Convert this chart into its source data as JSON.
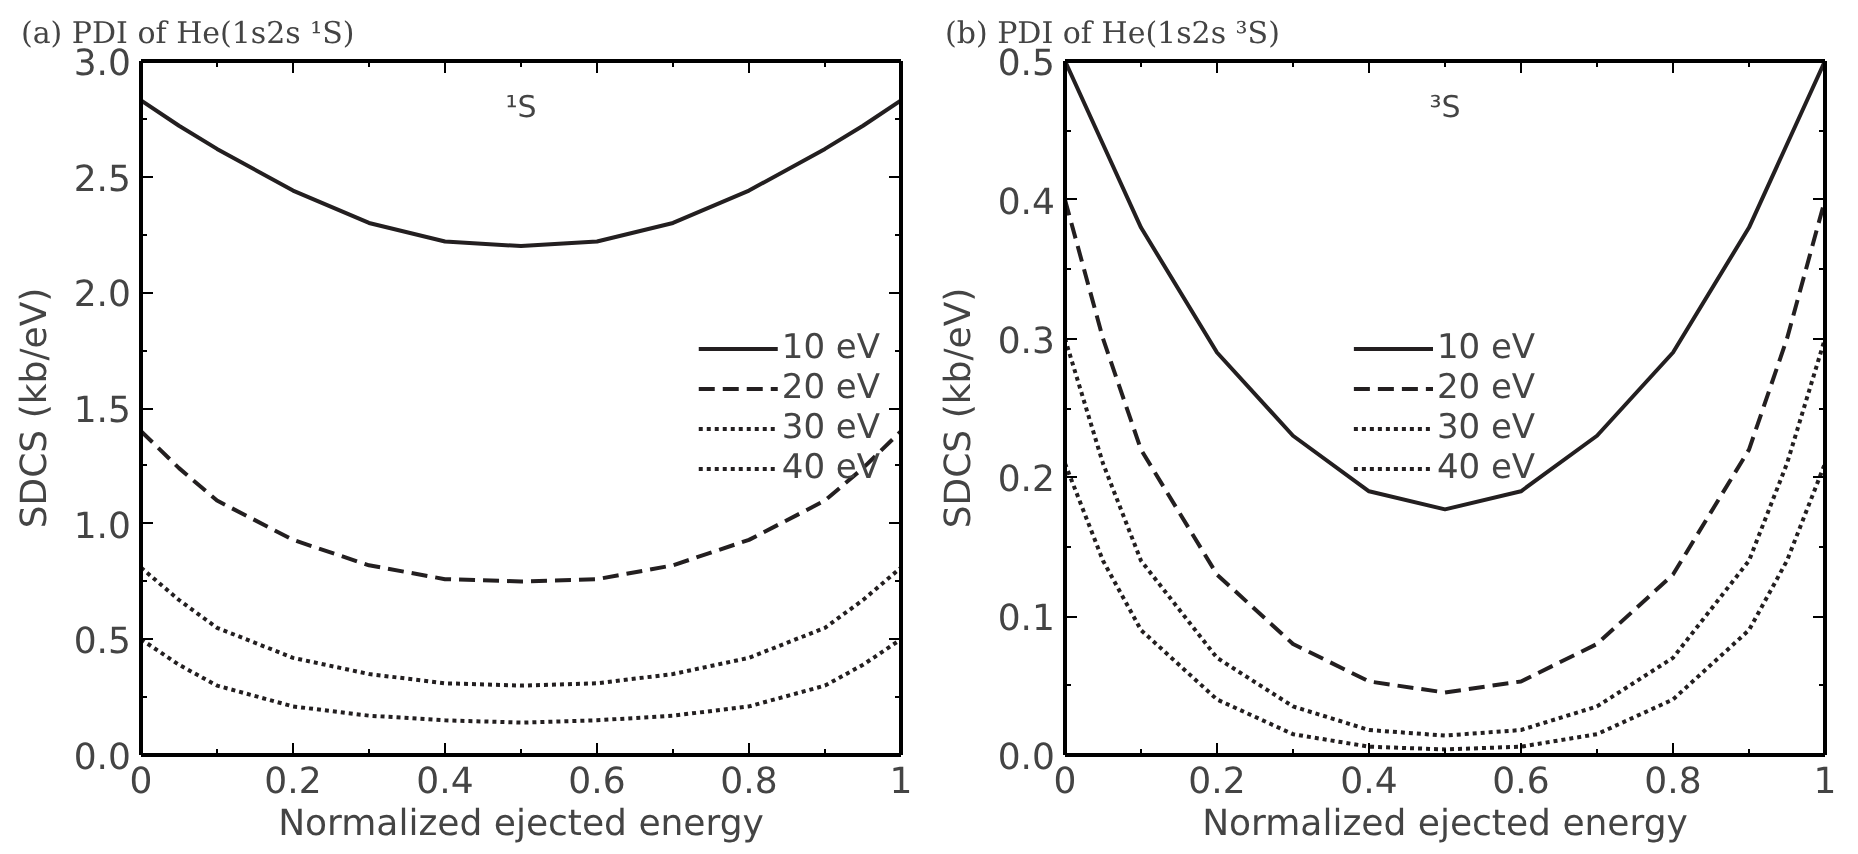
{
  "chart_data": [
    {
      "type": "line",
      "title": "(a) PDI of He(1s2s ¹S)",
      "xlabel": "Normalized ejected energy",
      "ylabel": "SDCS (kb/eV)",
      "annotations": [
        "¹S"
      ],
      "x": [
        0,
        0.05,
        0.1,
        0.2,
        0.3,
        0.4,
        0.5,
        0.6,
        0.7,
        0.8,
        0.9,
        0.95,
        1
      ],
      "series": [
        {
          "name": "10 eV",
          "color": "#231f20",
          "line_style": "solid",
          "values": [
            2.83,
            2.72,
            2.62,
            2.44,
            2.3,
            2.22,
            2.2,
            2.22,
            2.3,
            2.44,
            2.62,
            2.72,
            2.83
          ]
        },
        {
          "name": "20 eV",
          "color": "#231f20",
          "line_style": "dashed",
          "values": [
            1.4,
            1.24,
            1.1,
            0.93,
            0.82,
            0.76,
            0.75,
            0.76,
            0.82,
            0.93,
            1.1,
            1.24,
            1.4
          ]
        },
        {
          "name": "30 eV",
          "color": "#231f20",
          "line_style": "dotted",
          "values": [
            0.81,
            0.67,
            0.55,
            0.42,
            0.35,
            0.31,
            0.3,
            0.31,
            0.35,
            0.42,
            0.55,
            0.67,
            0.81
          ]
        },
        {
          "name": "40 eV",
          "color": "#231f20",
          "line_style": "dotted",
          "values": [
            0.5,
            0.39,
            0.3,
            0.21,
            0.17,
            0.15,
            0.14,
            0.15,
            0.17,
            0.21,
            0.3,
            0.39,
            0.5
          ]
        }
      ],
      "xlim": [
        0,
        1
      ],
      "xticks": [
        0,
        0.2,
        0.4,
        0.6,
        0.8,
        1
      ],
      "ylim": [
        0,
        3
      ],
      "yticks": [
        {
          "value": 0,
          "label": "0.0"
        },
        0.5,
        {
          "value": 1,
          "label": "1.0"
        },
        1.5,
        {
          "value": 2,
          "label": "2.0"
        },
        2.5,
        {
          "value": 3,
          "label": "3.0"
        }
      ],
      "grid": false,
      "legend": "right",
      "marker": "none"
    },
    {
      "type": "line",
      "title": "(b) PDI of He(1s2s ³S)",
      "xlabel": "Normalized ejected energy",
      "ylabel": "SDCS (kb/eV)",
      "annotations": [
        "³S"
      ],
      "x": [
        0,
        0.05,
        0.1,
        0.2,
        0.3,
        0.4,
        0.5,
        0.6,
        0.7,
        0.8,
        0.9,
        0.95,
        1
      ],
      "series": [
        {
          "name": "10 eV",
          "color": "#231f20",
          "line_style": "solid",
          "values": [
            0.5,
            0.44,
            0.38,
            0.29,
            0.23,
            0.19,
            0.177,
            0.19,
            0.23,
            0.29,
            0.38,
            0.44,
            0.5
          ]
        },
        {
          "name": "20 eV",
          "color": "#231f20",
          "line_style": "dashed",
          "values": [
            0.4,
            0.3,
            0.22,
            0.13,
            0.08,
            0.053,
            0.045,
            0.053,
            0.08,
            0.13,
            0.22,
            0.3,
            0.4
          ]
        },
        {
          "name": "30 eV",
          "color": "#231f20",
          "line_style": "dotted",
          "values": [
            0.3,
            0.21,
            0.14,
            0.07,
            0.035,
            0.018,
            0.014,
            0.018,
            0.035,
            0.07,
            0.14,
            0.21,
            0.3
          ]
        },
        {
          "name": "40 eV",
          "color": "#231f20",
          "line_style": "dotted",
          "values": [
            0.21,
            0.14,
            0.09,
            0.04,
            0.015,
            0.006,
            0.004,
            0.006,
            0.015,
            0.04,
            0.09,
            0.14,
            0.21
          ]
        }
      ],
      "xlim": [
        0,
        1
      ],
      "xticks": [
        0,
        0.2,
        0.4,
        0.6,
        0.8,
        1
      ],
      "ylim": [
        0,
        0.5
      ],
      "yticks": [
        {
          "value": 0,
          "label": "0.0"
        },
        0.1,
        0.2,
        0.3,
        0.4,
        0.5
      ],
      "grid": false,
      "legend": "center",
      "marker": "none"
    }
  ]
}
